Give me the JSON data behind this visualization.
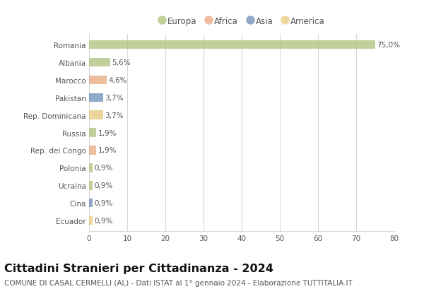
{
  "countries": [
    "Romania",
    "Albania",
    "Marocco",
    "Pakistan",
    "Rep. Dominicana",
    "Russia",
    "Rep. del Congo",
    "Polonia",
    "Ucraina",
    "Cina",
    "Ecuador"
  ],
  "values": [
    75.0,
    5.6,
    4.6,
    3.7,
    3.7,
    1.9,
    1.9,
    0.9,
    0.9,
    0.9,
    0.9
  ],
  "labels": [
    "75,0%",
    "5,6%",
    "4,6%",
    "3,7%",
    "3,7%",
    "1,9%",
    "1,9%",
    "0,9%",
    "0,9%",
    "0,9%",
    "0,9%"
  ],
  "colors": [
    "#adc178",
    "#adc178",
    "#e8a87c",
    "#6b8cba",
    "#e8c97a",
    "#adc178",
    "#e8a87c",
    "#adc178",
    "#adc178",
    "#6b8cba",
    "#e8c97a"
  ],
  "legend_labels": [
    "Europa",
    "Africa",
    "Asia",
    "America"
  ],
  "legend_colors": [
    "#adc178",
    "#e8a87c",
    "#6b8cba",
    "#e8c97a"
  ],
  "title": "Cittadini Stranieri per Cittadinanza - 2024",
  "subtitle": "COMUNE DI CASAL CERMELLI (AL) - Dati ISTAT al 1° gennaio 2024 - Elaborazione TUTTITALIA.IT",
  "xlim": [
    0,
    80
  ],
  "xticks": [
    0,
    10,
    20,
    30,
    40,
    50,
    60,
    70,
    80
  ],
  "background_color": "#ffffff",
  "grid_color": "#d8d8d8",
  "bar_height": 0.5,
  "title_fontsize": 11.5,
  "subtitle_fontsize": 7.5,
  "label_fontsize": 7.5,
  "tick_fontsize": 7.5,
  "legend_fontsize": 8.5
}
